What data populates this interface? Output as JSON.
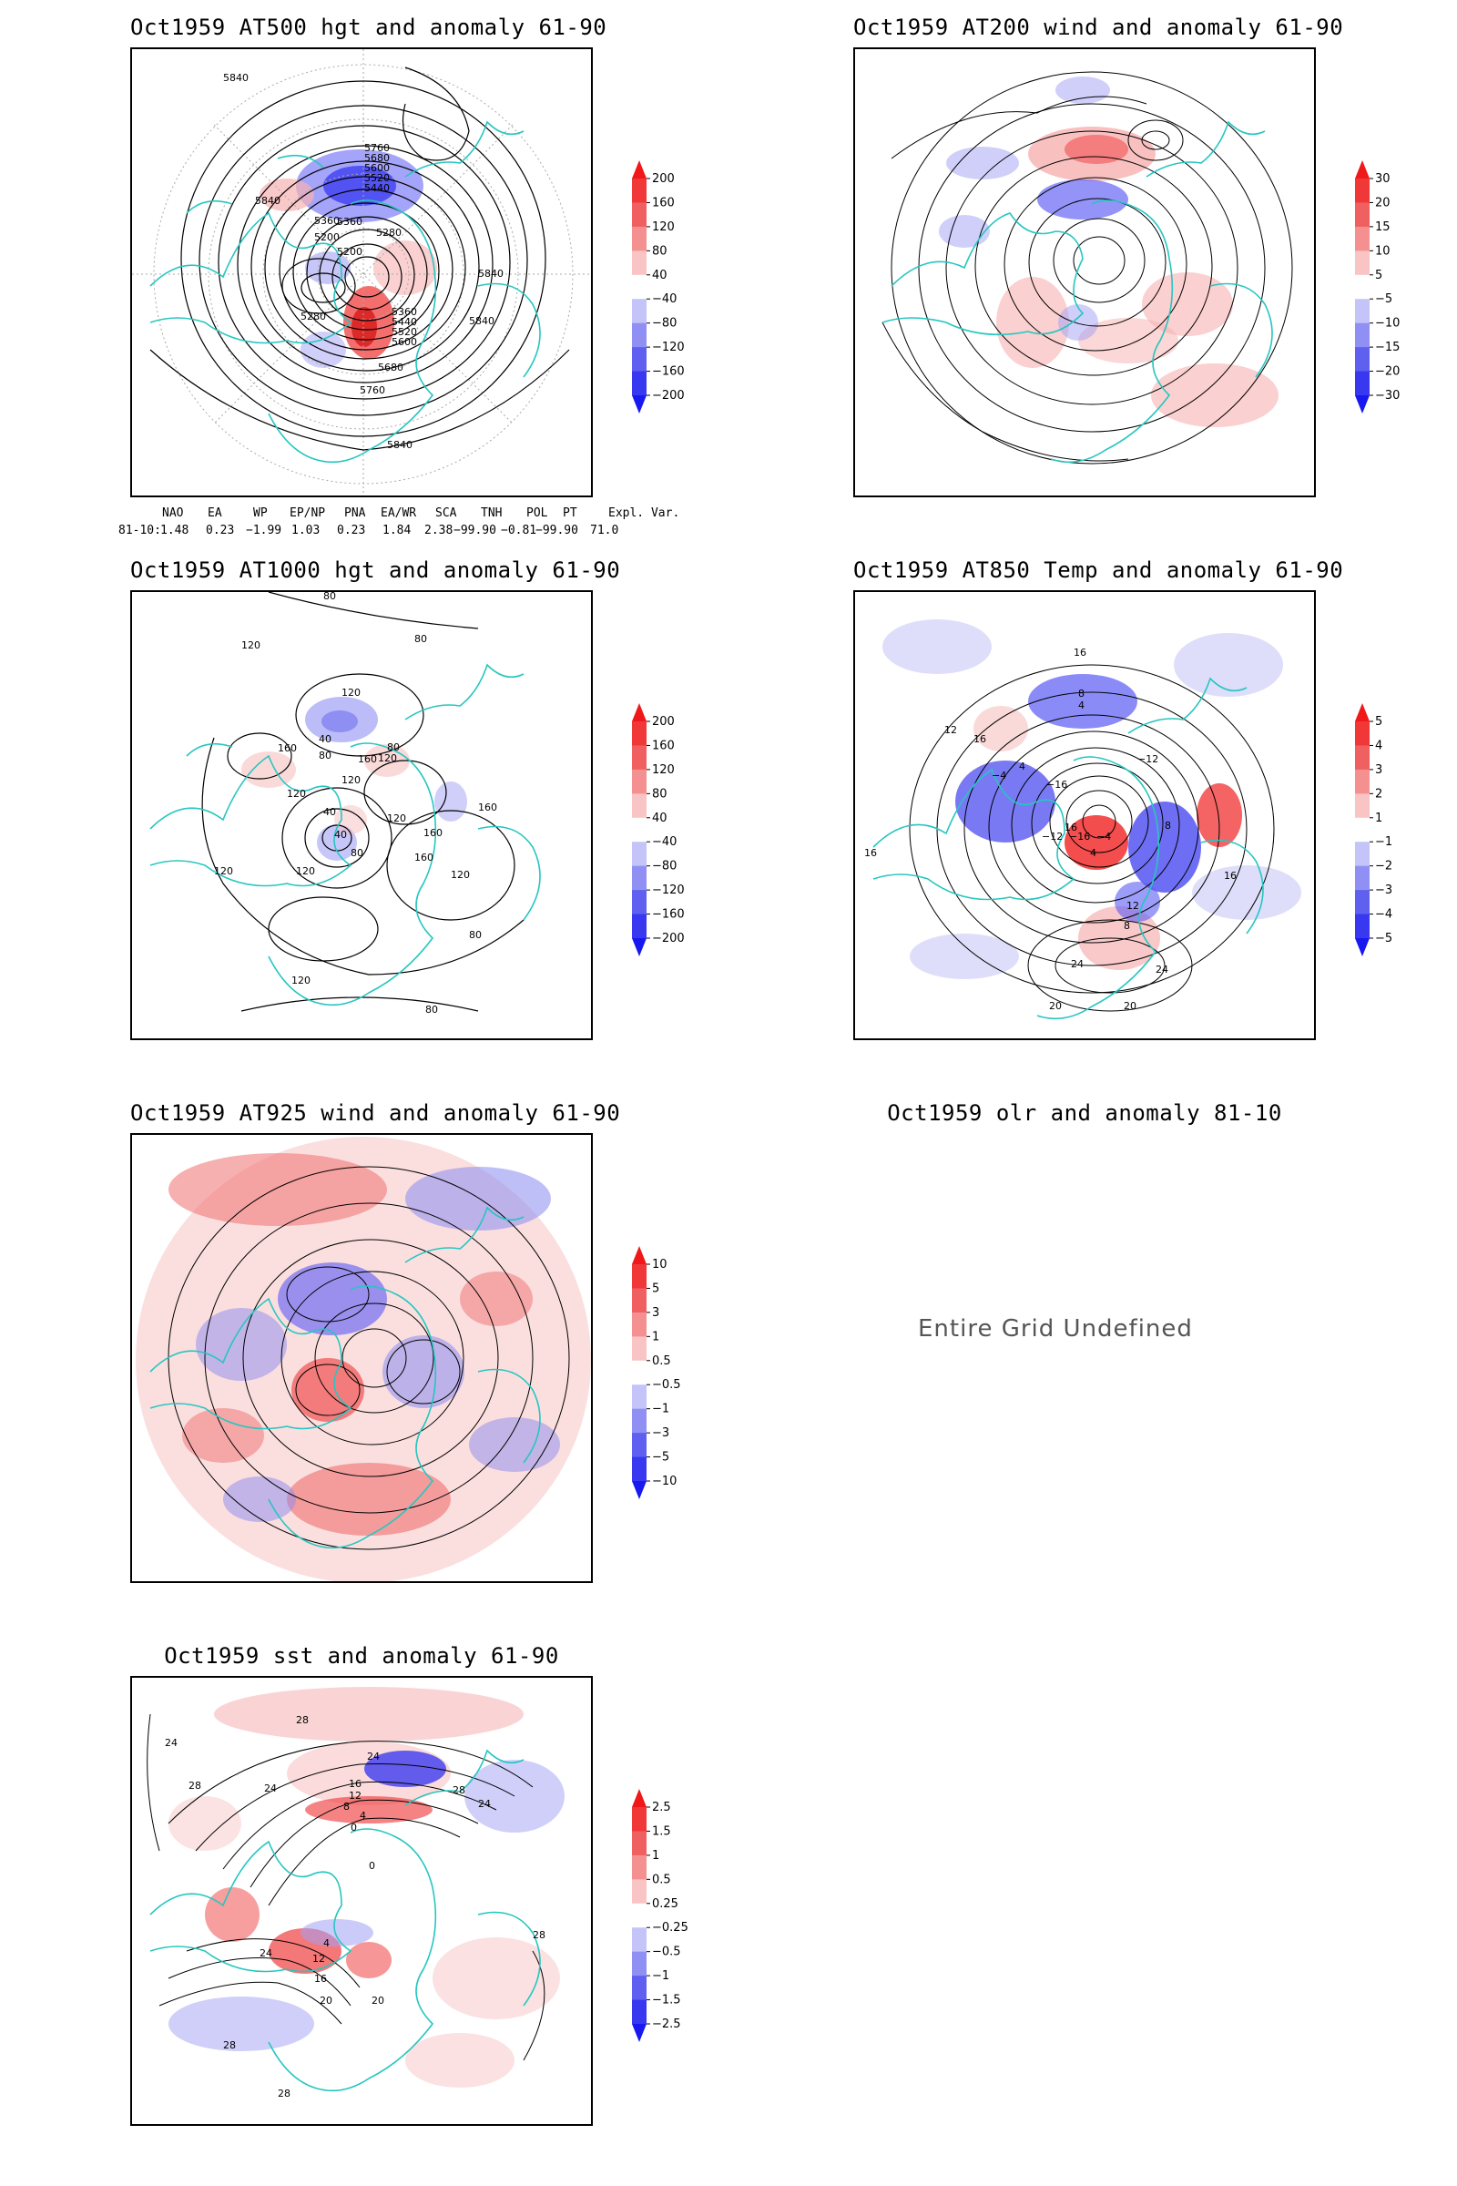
{
  "panels": [
    {
      "id": "p500",
      "title": "Oct1959 AT500 hgt and anomaly 61-90",
      "contour_labels": [
        "5840",
        "5760",
        "5680",
        "5600",
        "5520",
        "5440",
        "5360",
        "5280",
        "5200",
        "5840",
        "5360",
        "5200",
        "5280",
        "5360",
        "5440",
        "5520",
        "5600",
        "5680",
        "5760",
        "5840",
        "5840",
        "5840"
      ],
      "colorbar": {
        "ticks": [
          "200",
          "160",
          "120",
          "80",
          "40",
          "−40",
          "−80",
          "−120",
          "−160",
          "−200"
        ]
      }
    },
    {
      "id": "p200",
      "title": "Oct1959 AT200 wind and anomaly 61-90",
      "colorbar": {
        "ticks": [
          "30",
          "20",
          "15",
          "10",
          "5",
          "−5",
          "−10",
          "−15",
          "−20",
          "−30"
        ]
      }
    },
    {
      "id": "p1000",
      "title": "Oct1959 AT1000 hgt and anomaly 61-90",
      "contour_labels": [
        "80",
        "80",
        "120",
        "120",
        "160",
        "40",
        "160",
        "80",
        "120",
        "80",
        "120",
        "120",
        "40",
        "40",
        "120",
        "160",
        "80",
        "160",
        "120",
        "160",
        "120",
        "120",
        "80",
        "120",
        "80"
      ],
      "colorbar": {
        "ticks": [
          "200",
          "160",
          "120",
          "80",
          "40",
          "−40",
          "−80",
          "−120",
          "−160",
          "−200"
        ]
      }
    },
    {
      "id": "p850",
      "title": "Oct1959 AT850 Temp and anomaly 61-90",
      "contour_labels": [
        "16",
        "8",
        "4",
        "12",
        "16",
        "4",
        "−12",
        "−16",
        "−4",
        "8",
        "−12",
        "−16",
        "−4",
        "4",
        "16",
        "8",
        "12",
        "16",
        "24",
        "20",
        "20",
        "24",
        "16"
      ],
      "colorbar": {
        "ticks": [
          "5",
          "4",
          "3",
          "2",
          "1",
          "−1",
          "−2",
          "−3",
          "−4",
          "−5"
        ]
      }
    },
    {
      "id": "p925",
      "title": "Oct1959 AT925 wind and anomaly 61-90",
      "colorbar": {
        "ticks": [
          "10",
          "5",
          "3",
          "1",
          "0.5",
          "−0.5",
          "−1",
          "−3",
          "−5",
          "−10"
        ]
      }
    },
    {
      "id": "polr",
      "title": "Oct1959 olr and anomaly 81-10",
      "message": "Entire Grid Undefined"
    },
    {
      "id": "psst",
      "title": "Oct1959 sst and anomaly 61-90",
      "contour_labels": [
        "24",
        "28",
        "24",
        "28",
        "24",
        "16",
        "12",
        "28",
        "24",
        "8",
        "4",
        "0",
        "0",
        "4",
        "12",
        "24",
        "16",
        "20",
        "20",
        "28",
        "28",
        "28"
      ],
      "colorbar": {
        "ticks": [
          "2.5",
          "1.5",
          "1",
          "0.5",
          "0.25",
          "−0.25",
          "−0.5",
          "−1",
          "−1.5",
          "−2.5"
        ]
      }
    }
  ],
  "teleconnection_table": {
    "headers": [
      "NAO",
      "EA",
      "WP",
      "EP/NP",
      "PNA",
      "EA/WR",
      "SCA",
      "TNH",
      "POL",
      "PT",
      "Expl. Var."
    ],
    "row_label": "81-10:",
    "values": [
      "1.48",
      "0.23",
      "−1.99",
      "1.03",
      "0.23",
      "1.84",
      "2.38",
      "−99.90",
      "−0.81",
      "−99.90",
      "71.0"
    ]
  },
  "colors": {
    "coastline": "#26c6c0",
    "contour": "#000000",
    "positive_anomaly": "#f03030",
    "negative_anomaly": "#3030f0",
    "graticule": "#999999"
  }
}
